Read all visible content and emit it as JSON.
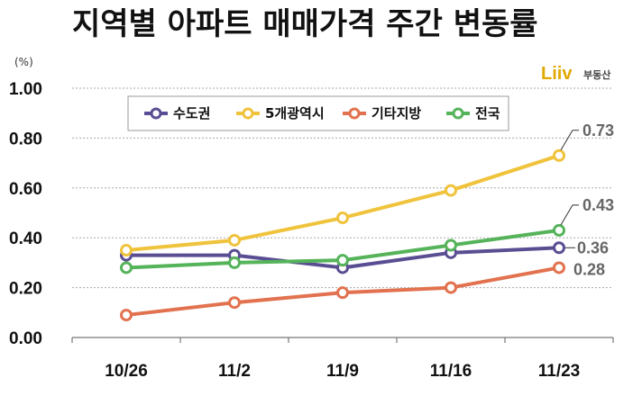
{
  "brand": {
    "mark": "Liiv",
    "text": "부동산",
    "color": "#e0a800"
  },
  "chart_data": {
    "type": "line",
    "title": "지역별 아파트 매매가격 주간 변동률",
    "unit": "(%)",
    "categories": [
      "10/26",
      "11/2",
      "11/9",
      "11/16",
      "11/23"
    ],
    "ylim": [
      0,
      1.0
    ],
    "yticks": [
      "0.00",
      "0.20",
      "0.40",
      "0.60",
      "0.80",
      "1.00"
    ],
    "grid": true,
    "legend_position": "top",
    "series": [
      {
        "name": "수도권",
        "color": "#5a4e93",
        "values": [
          0.33,
          0.33,
          0.28,
          0.34,
          0.36
        ],
        "end_label": "0.36"
      },
      {
        "name": "5개광역시",
        "color": "#f0c33c",
        "values": [
          0.35,
          0.39,
          0.48,
          0.59,
          0.73
        ],
        "end_label": "0.73"
      },
      {
        "name": "기타지방",
        "color": "#e2724f",
        "values": [
          0.09,
          0.14,
          0.18,
          0.2,
          0.28
        ],
        "end_label": "0.28"
      },
      {
        "name": "전국",
        "color": "#55b35a",
        "values": [
          0.28,
          0.3,
          0.31,
          0.37,
          0.43
        ],
        "end_label": "0.43"
      }
    ]
  }
}
